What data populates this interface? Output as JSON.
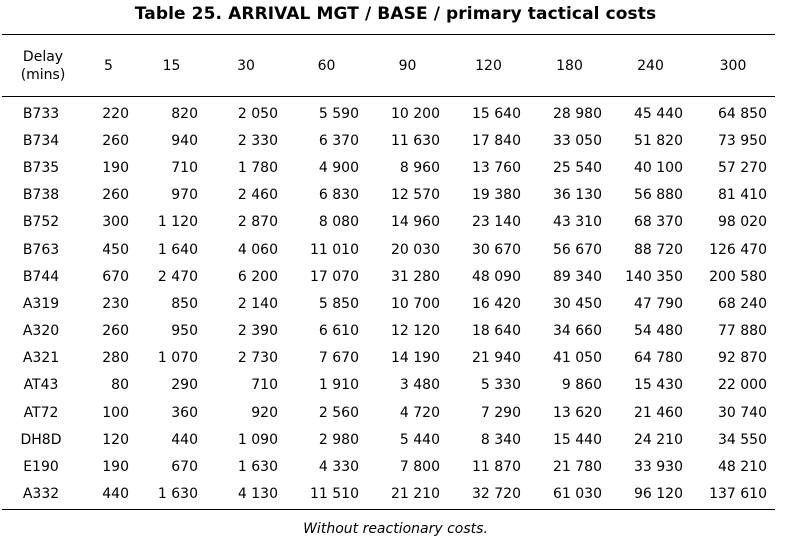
{
  "title": "Table 25.  ARRIVAL MGT / BASE / primary tactical costs",
  "caption": "Without reactionary costs.",
  "table": {
    "corner_line1": "Delay",
    "corner_line2": "(mins)",
    "columns": [
      "5",
      "15",
      "30",
      "60",
      "90",
      "120",
      "180",
      "240",
      "300"
    ],
    "rows": [
      {
        "label": "B733",
        "values": [
          "220",
          "820",
          "2 050",
          "5 590",
          "10 200",
          "15 640",
          "28 980",
          "45 440",
          "64 850"
        ]
      },
      {
        "label": "B734",
        "values": [
          "260",
          "940",
          "2 330",
          "6 370",
          "11 630",
          "17 840",
          "33 050",
          "51 820",
          "73 950"
        ]
      },
      {
        "label": "B735",
        "values": [
          "190",
          "710",
          "1 780",
          "4 900",
          "8 960",
          "13 760",
          "25 540",
          "40 100",
          "57 270"
        ]
      },
      {
        "label": "B738",
        "values": [
          "260",
          "970",
          "2 460",
          "6 830",
          "12 570",
          "19 380",
          "36 130",
          "56 880",
          "81 410"
        ]
      },
      {
        "label": "B752",
        "values": [
          "300",
          "1 120",
          "2 870",
          "8 080",
          "14 960",
          "23 140",
          "43 310",
          "68 370",
          "98 020"
        ]
      },
      {
        "label": "B763",
        "values": [
          "450",
          "1 640",
          "4 060",
          "11 010",
          "20 030",
          "30 670",
          "56 670",
          "88 720",
          "126 470"
        ]
      },
      {
        "label": "B744",
        "values": [
          "670",
          "2 470",
          "6 200",
          "17 070",
          "31 280",
          "48 090",
          "89 340",
          "140 350",
          "200 580"
        ]
      },
      {
        "label": "A319",
        "values": [
          "230",
          "850",
          "2 140",
          "5 850",
          "10 700",
          "16 420",
          "30 450",
          "47 790",
          "68 240"
        ]
      },
      {
        "label": "A320",
        "values": [
          "260",
          "950",
          "2 390",
          "6 610",
          "12 120",
          "18 640",
          "34 660",
          "54 480",
          "77 880"
        ]
      },
      {
        "label": "A321",
        "values": [
          "280",
          "1 070",
          "2 730",
          "7 670",
          "14 190",
          "21 940",
          "41 050",
          "64 780",
          "92 870"
        ]
      },
      {
        "label": "AT43",
        "values": [
          "80",
          "290",
          "710",
          "1 910",
          "3 480",
          "5 330",
          "9 860",
          "15 430",
          "22 000"
        ]
      },
      {
        "label": "AT72",
        "values": [
          "100",
          "360",
          "920",
          "2 560",
          "4 720",
          "7 290",
          "13 620",
          "21 460",
          "30 740"
        ]
      },
      {
        "label": "DH8D",
        "values": [
          "120",
          "440",
          "1 090",
          "2 980",
          "5 440",
          "8 340",
          "15 440",
          "24 210",
          "34 550"
        ]
      },
      {
        "label": "E190",
        "values": [
          "190",
          "670",
          "1 630",
          "4 330",
          "7 800",
          "11 870",
          "21 780",
          "33 930",
          "48 210"
        ]
      },
      {
        "label": "A332",
        "values": [
          "440",
          "1 630",
          "4 130",
          "11 510",
          "21 210",
          "32 720",
          "61 030",
          "96 120",
          "137 610"
        ]
      }
    ]
  }
}
